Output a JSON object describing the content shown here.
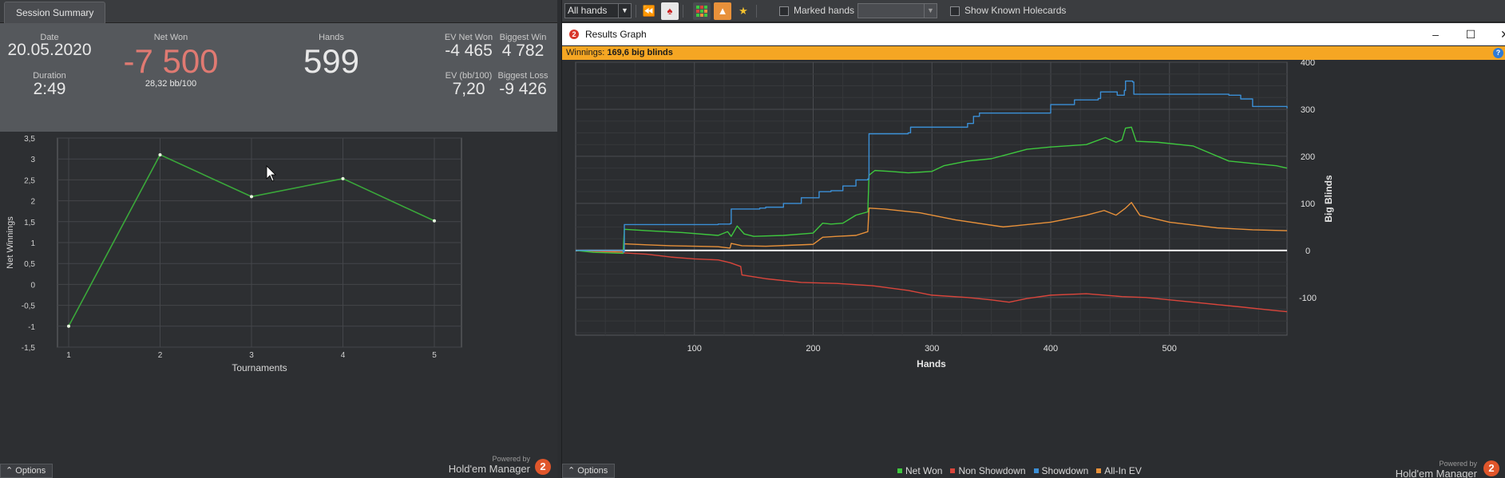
{
  "colors": {
    "net_won": "#3ec73e",
    "non_showdown": "#d9453b",
    "showdown": "#3b8fd6",
    "all_in_ev": "#e8913a",
    "tournament_line": "#3aa83a",
    "negative_value": "#e07a72",
    "winnings_bar": "#f5a623"
  },
  "left_panel": {
    "tab_label": "Session Summary",
    "summary": {
      "date_label": "Date",
      "date_value": "20.05.2020",
      "duration_label": "Duration",
      "duration_value": "2:49",
      "net_won_label": "Net Won",
      "net_won_value": "-7 500",
      "bb100_value": "28,32 bb/100",
      "hands_label": "Hands",
      "hands_value": "599",
      "ev_net_won_label": "EV Net Won",
      "ev_net_won_value": "-4 465",
      "biggest_win_label": "Biggest Win",
      "biggest_win_value": "4 782",
      "ev_bb100_label": "EV (bb/100)",
      "ev_bb100_value": "7,20",
      "biggest_loss_label": "Biggest Loss",
      "biggest_loss_value": "-9 426"
    },
    "options_label": "Options",
    "powered_by": "Powered by",
    "brand": "Hold'em Manager",
    "brand_logo": "2"
  },
  "right_panel": {
    "toolbar": {
      "hands_filter": "All hands",
      "marked_hands_label": "Marked hands",
      "show_known_holecards_label": "Show Known Holecards",
      "icons": [
        "rewind-icon",
        "cards-icon",
        "grid-icon",
        "fire-icon",
        "trophy-icon"
      ]
    },
    "window_title": "Results Graph",
    "window_logo": "2",
    "winnings_label": "Winnings:",
    "winnings_value": "169,6 big blinds",
    "help_glyph": "?",
    "options_label": "Options",
    "powered_by": "Powered by",
    "brand": "Hold'em Manager",
    "brand_logo": "2"
  },
  "chart_data": [
    {
      "type": "line",
      "xlabel": "Tournaments",
      "ylabel": "Net Winnings",
      "x": [
        1,
        2,
        3,
        4,
        5
      ],
      "xticks": [
        "1",
        "2",
        "3",
        "4",
        "5"
      ],
      "ylim": [
        -1.5,
        3.5
      ],
      "yticks": [
        "-1,5",
        "-1",
        "-0,5",
        "0",
        "0,5",
        "1",
        "1,5",
        "2",
        "2,5",
        "3",
        "3,5"
      ],
      "series": [
        {
          "values": [
            -1.0,
            3.1,
            2.1,
            2.53,
            1.52
          ]
        }
      ],
      "grid": true
    },
    {
      "type": "line",
      "xlabel": "Hands",
      "ylabel": "Big Blinds",
      "xlim": [
        0,
        599
      ],
      "ylim": [
        -180,
        400
      ],
      "xticks": [
        "100",
        "200",
        "300",
        "400",
        "500"
      ],
      "yticks": [
        "-100",
        "0",
        "100",
        "200",
        "300",
        "400"
      ],
      "grid": true,
      "legend_position": "bottom",
      "series": [
        {
          "name": "Net Won",
          "x": [
            0,
            15,
            40,
            41,
            60,
            90,
            120,
            128,
            131,
            136,
            142,
            150,
            175,
            200,
            208,
            215,
            225,
            236,
            246,
            247,
            252,
            265,
            280,
            300,
            310,
            330,
            350,
            380,
            400,
            430,
            446,
            455,
            460,
            463,
            468,
            472,
            490,
            520,
            550,
            570,
            590,
            599
          ],
          "y": [
            0,
            -4,
            -6,
            45,
            42,
            38,
            32,
            40,
            30,
            52,
            35,
            30,
            32,
            37,
            58,
            56,
            58,
            75,
            82,
            160,
            170,
            168,
            165,
            168,
            180,
            190,
            195,
            215,
            220,
            225,
            240,
            230,
            235,
            260,
            262,
            232,
            230,
            222,
            190,
            185,
            180,
            175
          ]
        },
        {
          "name": "Non Showdown",
          "x": [
            0,
            20,
            40,
            60,
            80,
            100,
            120,
            130,
            139,
            140,
            160,
            190,
            220,
            250,
            280,
            300,
            330,
            350,
            365,
            380,
            400,
            430,
            460,
            480,
            520,
            560,
            590,
            599
          ],
          "y": [
            0,
            -2,
            -5,
            -8,
            -14,
            -18,
            -20,
            -26,
            -34,
            -52,
            -60,
            -68,
            -70,
            -75,
            -85,
            -95,
            -100,
            -105,
            -110,
            -102,
            -95,
            -92,
            -98,
            -100,
            -110,
            -120,
            -128,
            -130
          ]
        },
        {
          "name": "Showdown",
          "x": [
            0,
            40,
            41,
            80,
            120,
            130,
            131,
            155,
            160,
            175,
            190,
            205,
            215,
            225,
            236,
            246,
            247,
            265,
            280,
            282,
            300,
            330,
            335,
            340,
            385,
            400,
            420,
            440,
            442,
            455,
            456,
            462,
            463,
            469,
            470,
            520,
            550,
            560,
            570,
            599
          ],
          "y": [
            0,
            -3,
            55,
            55,
            56,
            57,
            88,
            90,
            92,
            100,
            112,
            125,
            127,
            137,
            150,
            152,
            248,
            248,
            250,
            262,
            262,
            270,
            285,
            292,
            292,
            310,
            320,
            323,
            337,
            337,
            330,
            340,
            360,
            358,
            332,
            332,
            330,
            322,
            306,
            302
          ]
        },
        {
          "name": "All-In EV",
          "x": [
            0,
            40,
            41,
            60,
            80,
            120,
            130,
            131,
            140,
            160,
            180,
            200,
            208,
            220,
            236,
            246,
            247,
            260,
            290,
            320,
            360,
            400,
            430,
            445,
            455,
            463,
            468,
            475,
            500,
            540,
            570,
            599
          ],
          "y": [
            0,
            -2,
            14,
            12,
            10,
            8,
            5,
            15,
            10,
            9,
            11,
            13,
            28,
            30,
            32,
            40,
            90,
            88,
            80,
            65,
            50,
            60,
            75,
            85,
            75,
            90,
            102,
            75,
            60,
            48,
            44,
            42
          ]
        }
      ]
    }
  ]
}
